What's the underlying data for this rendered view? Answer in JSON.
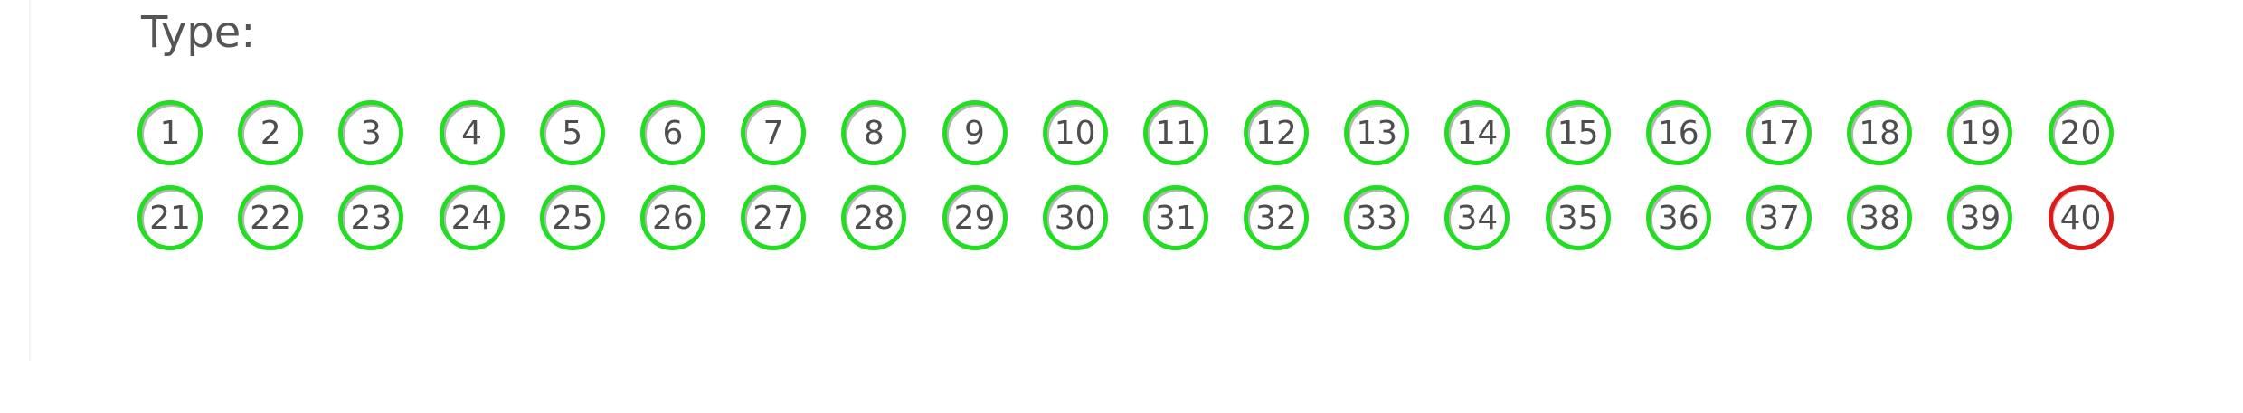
{
  "section": {
    "label": "Type:"
  },
  "colors": {
    "ok": "#22dd22",
    "error": "#dd1a1a"
  },
  "cells": [
    {
      "num": "1",
      "status": "ok"
    },
    {
      "num": "2",
      "status": "ok"
    },
    {
      "num": "3",
      "status": "ok"
    },
    {
      "num": "4",
      "status": "ok"
    },
    {
      "num": "5",
      "status": "ok"
    },
    {
      "num": "6",
      "status": "ok"
    },
    {
      "num": "7",
      "status": "ok"
    },
    {
      "num": "8",
      "status": "ok"
    },
    {
      "num": "9",
      "status": "ok"
    },
    {
      "num": "10",
      "status": "ok"
    },
    {
      "num": "11",
      "status": "ok"
    },
    {
      "num": "12",
      "status": "ok"
    },
    {
      "num": "13",
      "status": "ok"
    },
    {
      "num": "14",
      "status": "ok"
    },
    {
      "num": "15",
      "status": "ok"
    },
    {
      "num": "16",
      "status": "ok"
    },
    {
      "num": "17",
      "status": "ok"
    },
    {
      "num": "18",
      "status": "ok"
    },
    {
      "num": "19",
      "status": "ok"
    },
    {
      "num": "20",
      "status": "ok"
    },
    {
      "num": "21",
      "status": "ok"
    },
    {
      "num": "22",
      "status": "ok"
    },
    {
      "num": "23",
      "status": "ok"
    },
    {
      "num": "24",
      "status": "ok"
    },
    {
      "num": "25",
      "status": "ok"
    },
    {
      "num": "26",
      "status": "ok"
    },
    {
      "num": "27",
      "status": "ok"
    },
    {
      "num": "28",
      "status": "ok"
    },
    {
      "num": "29",
      "status": "ok"
    },
    {
      "num": "30",
      "status": "ok"
    },
    {
      "num": "31",
      "status": "ok"
    },
    {
      "num": "32",
      "status": "ok"
    },
    {
      "num": "33",
      "status": "ok"
    },
    {
      "num": "34",
      "status": "ok"
    },
    {
      "num": "35",
      "status": "ok"
    },
    {
      "num": "36",
      "status": "ok"
    },
    {
      "num": "37",
      "status": "ok"
    },
    {
      "num": "38",
      "status": "ok"
    },
    {
      "num": "39",
      "status": "ok"
    },
    {
      "num": "40",
      "status": "error"
    }
  ]
}
